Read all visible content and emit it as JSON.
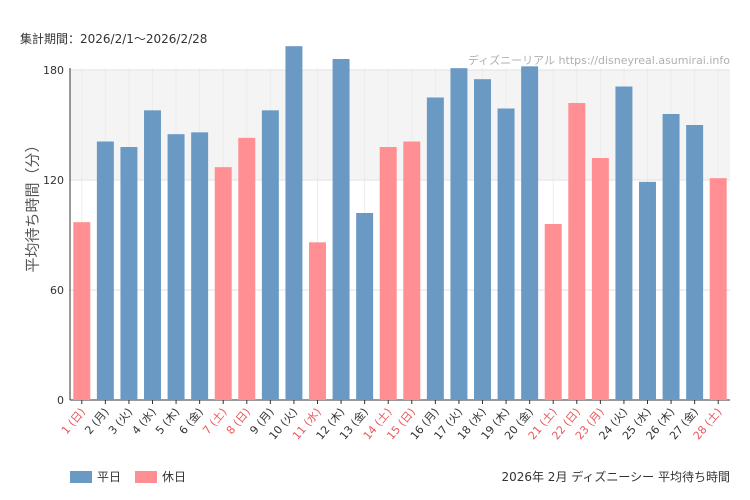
{
  "header": {
    "period": "集計期間：2026/2/1〜2026/2/28",
    "watermark": "ディズニーリアル https://disneyreal.asumirai.info"
  },
  "chart_data": {
    "type": "bar",
    "title": "2026年 2月 ディズニーシー 平均待ち時間",
    "xlabel": "",
    "ylabel": "平均待ち時間（分）",
    "ylim": [
      0,
      180
    ],
    "yticks": [
      0,
      60,
      120,
      180
    ],
    "band": [
      120,
      180
    ],
    "grid": true,
    "colors": {
      "weekday": "#6a9ac4",
      "holiday": "#ff8f92",
      "holiday_label": "#e8575b",
      "weekday_label": "#333333"
    },
    "legend": [
      {
        "key": "weekday",
        "label": "平日"
      },
      {
        "key": "holiday",
        "label": "休日"
      }
    ],
    "categories": [
      "1 (日)",
      "2 (月)",
      "3 (火)",
      "4 (水)",
      "5 (木)",
      "6 (金)",
      "7 (土)",
      "8 (日)",
      "9 (月)",
      "10 (火)",
      "11 (水)",
      "12 (木)",
      "13 (金)",
      "14 (土)",
      "15 (日)",
      "16 (月)",
      "17 (火)",
      "18 (水)",
      "19 (木)",
      "20 (金)",
      "21 (土)",
      "22 (日)",
      "23 (月)",
      "24 (火)",
      "25 (水)",
      "26 (木)",
      "27 (金)",
      "28 (土)"
    ],
    "values": [
      97,
      141,
      138,
      158,
      145,
      146,
      127,
      143,
      158,
      193,
      86,
      186,
      102,
      138,
      141,
      165,
      181,
      175,
      159,
      182,
      96,
      162,
      132,
      171,
      119,
      156,
      150,
      121
    ],
    "holiday": [
      true,
      false,
      false,
      false,
      false,
      false,
      true,
      true,
      false,
      false,
      true,
      false,
      false,
      true,
      true,
      false,
      false,
      false,
      false,
      false,
      true,
      true,
      true,
      false,
      false,
      false,
      false,
      true
    ]
  }
}
